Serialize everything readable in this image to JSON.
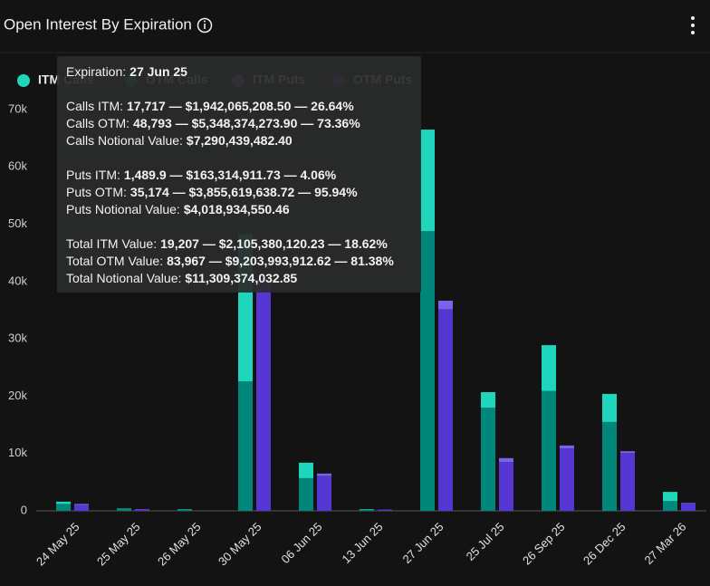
{
  "header": {
    "title": "Open Interest By Expiration"
  },
  "chart_data": {
    "type": "bar",
    "categories": [
      "24 May 25",
      "25 May 25",
      "26 May 25",
      "30 May 25",
      "06 Jun 25",
      "13 Jun 25",
      "27 Jun 25",
      "25 Jul 25",
      "26 Sep 25",
      "26 Dec 25",
      "27 Mar 26"
    ],
    "series": [
      {
        "name": "ITM Calls",
        "color": "#1fd6bd",
        "values": [
          400,
          100,
          50,
          25700,
          2700,
          100,
          17717,
          2700,
          8000,
          4900,
          1600
        ]
      },
      {
        "name": "OTM Calls",
        "color": "#00877a",
        "values": [
          1200,
          300,
          250,
          22600,
          5700,
          200,
          48793,
          18000,
          20900,
          15500,
          1700
        ]
      },
      {
        "name": "ITM Puts",
        "color": "#7a63e8",
        "values": [
          200,
          50,
          0,
          1000,
          400,
          50,
          1489.9,
          700,
          500,
          300,
          100
        ]
      },
      {
        "name": "OTM Puts",
        "color": "#5536d2",
        "values": [
          1000,
          250,
          0,
          39500,
          6100,
          150,
          35174,
          8500,
          10900,
          10100,
          1300
        ]
      }
    ],
    "ylim": [
      0,
      70000
    ],
    "yticks": [
      0,
      {
        "value": 10000,
        "label": "10k"
      },
      {
        "value": 20000,
        "label": "20k"
      },
      {
        "value": 30000,
        "label": "30k"
      },
      {
        "value": 40000,
        "label": "40k"
      },
      {
        "value": 50000,
        "label": "50k"
      },
      {
        "value": 60000,
        "label": "60k"
      },
      {
        "value": 70000,
        "label": "70k"
      }
    ],
    "grid": false
  },
  "tooltip": {
    "expiration": {
      "label": "Expiration:",
      "value": "27 Jun 25"
    },
    "groups": [
      [
        {
          "label": "Calls ITM:",
          "value": "17,717 — $1,942,065,208.50 — 26.64%"
        },
        {
          "label": "Calls OTM:",
          "value": "48,793 — $5,348,374,273.90 — 73.36%"
        },
        {
          "label": "Calls Notional Value:",
          "value": "$7,290,439,482.40"
        }
      ],
      [
        {
          "label": "Puts ITM:",
          "value": "1,489.9 — $163,314,911.73 — 4.06%"
        },
        {
          "label": "Puts OTM:",
          "value": "35,174 — $3,855,619,638.72 — 95.94%"
        },
        {
          "label": "Puts Notional Value:",
          "value": "$4,018,934,550.46"
        }
      ],
      [
        {
          "label": "Total ITM Value:",
          "value": "19,207 — $2,105,380,120.23 — 18.62%"
        },
        {
          "label": "Total OTM Value:",
          "value": "83,967 — $9,203,993,912.62 — 81.38%"
        },
        {
          "label": "Total Notional Value:",
          "value": "$11,309,374,032.85"
        }
      ]
    ]
  }
}
